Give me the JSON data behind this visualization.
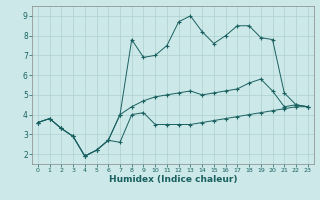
{
  "xlabel": "Humidex (Indice chaleur)",
  "background_color": "#cce8e8",
  "grid_color": "#aed0d0",
  "line_color": "#1a6060",
  "xlim": [
    -0.5,
    23.5
  ],
  "ylim": [
    1.5,
    9.5
  ],
  "xticks": [
    0,
    1,
    2,
    3,
    4,
    5,
    6,
    7,
    8,
    9,
    10,
    11,
    12,
    13,
    14,
    15,
    16,
    17,
    18,
    19,
    20,
    21,
    22,
    23
  ],
  "yticks": [
    2,
    3,
    4,
    5,
    6,
    7,
    8,
    9
  ],
  "series1_x": [
    0,
    1,
    2,
    3,
    4,
    5,
    6,
    7,
    8,
    9,
    10,
    11,
    12,
    13,
    14,
    15,
    16,
    17,
    18,
    19,
    20,
    21,
    22,
    23
  ],
  "series1_y": [
    3.6,
    3.8,
    3.3,
    2.9,
    1.9,
    2.2,
    2.7,
    2.6,
    4.0,
    4.1,
    3.5,
    3.5,
    3.5,
    3.5,
    3.6,
    3.7,
    3.8,
    3.9,
    4.0,
    4.1,
    4.2,
    4.3,
    4.4,
    4.4
  ],
  "series2_x": [
    0,
    1,
    2,
    3,
    4,
    5,
    6,
    7,
    8,
    9,
    10,
    11,
    12,
    13,
    14,
    15,
    16,
    17,
    18,
    19,
    20,
    21,
    22,
    23
  ],
  "series2_y": [
    3.6,
    3.8,
    3.3,
    2.9,
    1.9,
    2.2,
    2.7,
    4.0,
    7.8,
    6.9,
    7.0,
    7.5,
    8.7,
    9.0,
    8.2,
    7.6,
    8.0,
    8.5,
    8.5,
    7.9,
    7.8,
    5.1,
    4.5,
    4.4
  ],
  "series3_x": [
    0,
    1,
    2,
    3,
    4,
    5,
    6,
    7,
    8,
    9,
    10,
    11,
    12,
    13,
    14,
    15,
    16,
    17,
    18,
    19,
    20,
    21,
    22,
    23
  ],
  "series3_y": [
    3.6,
    3.8,
    3.3,
    2.9,
    1.9,
    2.2,
    2.7,
    4.0,
    4.4,
    4.7,
    4.9,
    5.0,
    5.1,
    5.2,
    5.0,
    5.1,
    5.2,
    5.3,
    5.6,
    5.8,
    5.2,
    4.4,
    4.5,
    4.4
  ]
}
